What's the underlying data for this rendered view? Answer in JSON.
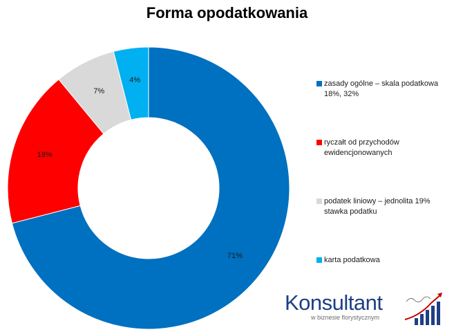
{
  "chart_data": {
    "type": "pie",
    "title": "Forma opodatkowania",
    "donut": true,
    "start": "top, clockwise",
    "legend_position": "right",
    "slices": [
      {
        "label": "zasady ogólne – skala podatkowa 18%, 32%",
        "value": 71,
        "display": "71%",
        "color": "#0070c0"
      },
      {
        "label": "ryczałt od przychodów ewidencjonowanych",
        "value": 18,
        "display": "18%",
        "color": "#ff0000"
      },
      {
        "label": "podatek liniowy – jednolita 19% stawka podatku",
        "value": 7,
        "display": "7%",
        "color": "#d9d9d9"
      },
      {
        "label": "karta podatkowa",
        "value": 4,
        "display": "4%",
        "color": "#00b0f0"
      }
    ]
  },
  "logo": {
    "name": "Konsultant",
    "tagline": "w biznesie florystycznym",
    "icon": "rising-bar-chart-arrow-icon"
  }
}
